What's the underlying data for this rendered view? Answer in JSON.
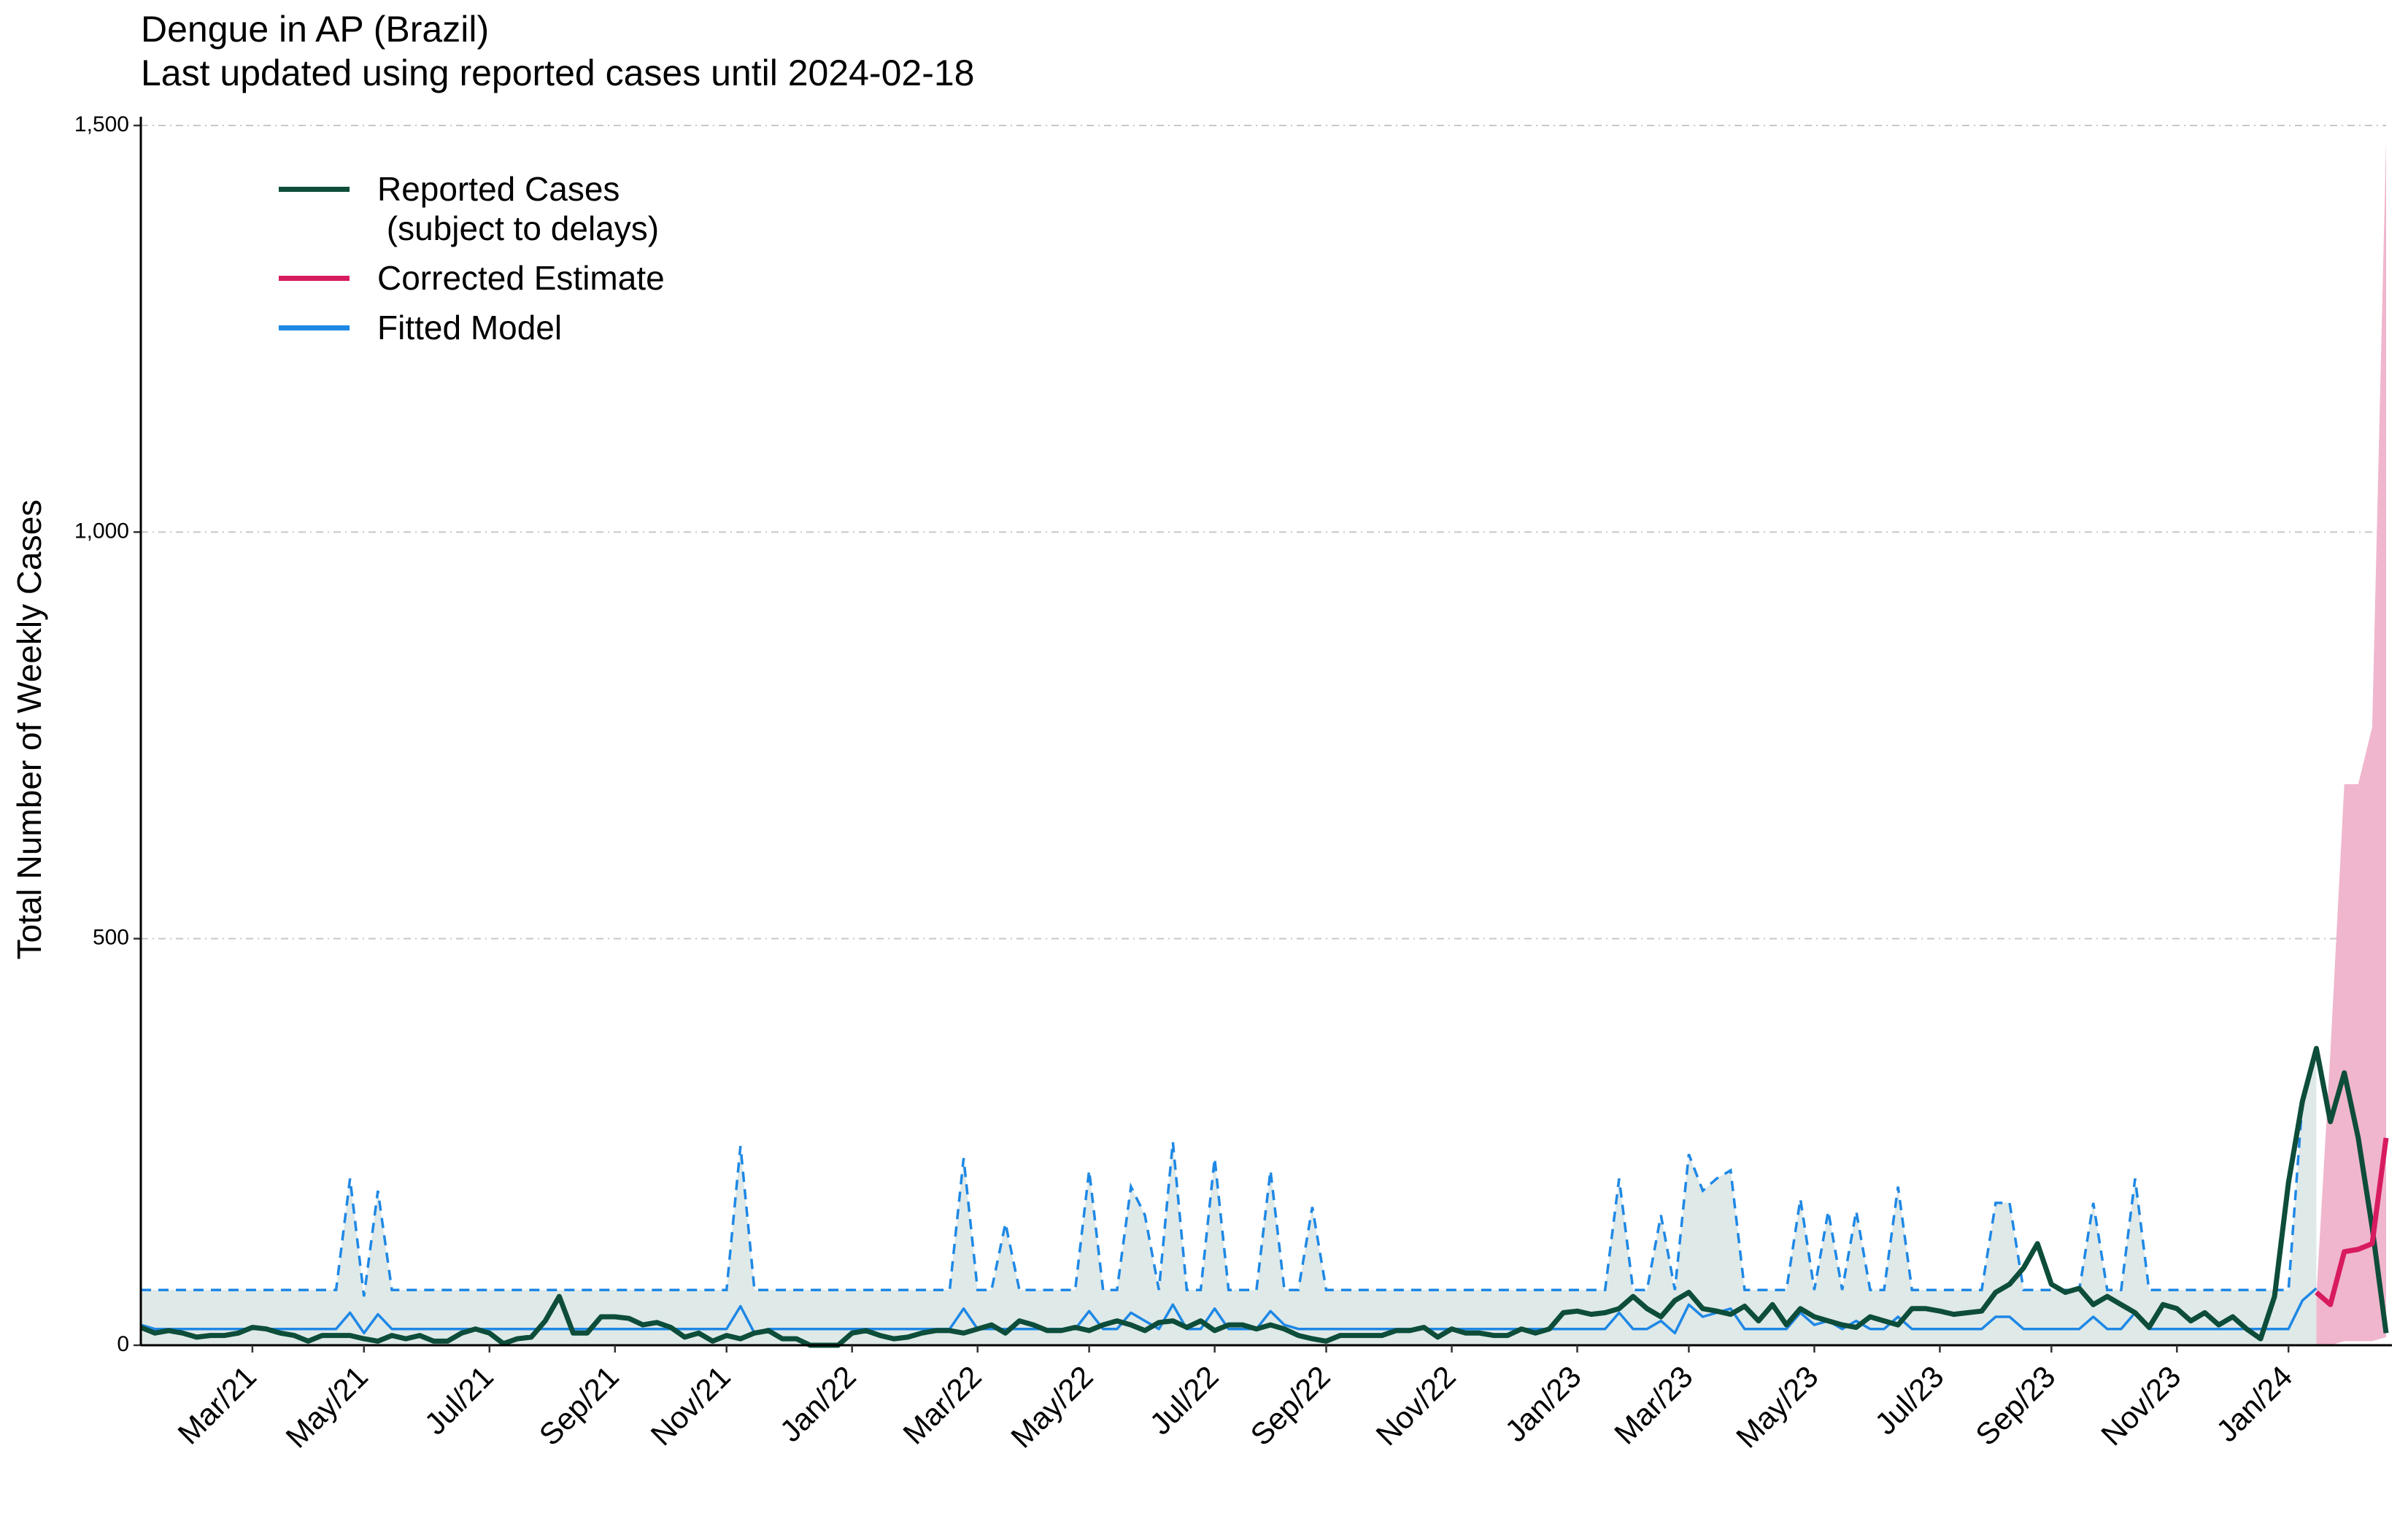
{
  "chart_data": {
    "type": "line",
    "title": "Dengue in AP (Brazil)",
    "subtitle": "Last updated using reported cases until 2024-02-18",
    "y_label": "Total Number of Weekly Cases",
    "ylim": [
      0,
      1500
    ],
    "yticks": [
      0,
      500,
      {
        "value": 1000,
        "label": "1,000"
      },
      {
        "value": 1500,
        "label": "1,500"
      }
    ],
    "grid": true,
    "legend": "top-left",
    "categories": [
      null,
      null,
      null,
      null,
      null,
      null,
      null,
      null,
      "Mar/21",
      null,
      null,
      null,
      null,
      null,
      null,
      null,
      "May/21",
      null,
      null,
      null,
      null,
      null,
      null,
      null,
      null,
      "Jul/21",
      null,
      null,
      null,
      null,
      null,
      null,
      null,
      null,
      "Sep/21",
      null,
      null,
      null,
      null,
      null,
      null,
      null,
      "Nov/21",
      null,
      null,
      null,
      null,
      null,
      null,
      null,
      null,
      "Jan/22",
      null,
      null,
      null,
      null,
      null,
      null,
      null,
      null,
      "Mar/22",
      null,
      null,
      null,
      null,
      null,
      null,
      null,
      "May/22",
      null,
      null,
      null,
      null,
      null,
      null,
      null,
      null,
      "Jul/22",
      null,
      null,
      null,
      null,
      null,
      null,
      null,
      "Sep/22",
      null,
      null,
      null,
      null,
      null,
      null,
      null,
      null,
      "Nov/22",
      null,
      null,
      null,
      null,
      null,
      null,
      null,
      null,
      "Jan/23",
      null,
      null,
      null,
      null,
      null,
      null,
      null,
      "Mar/23",
      null,
      null,
      null,
      null,
      null,
      null,
      null,
      null,
      "May/23",
      null,
      null,
      null,
      null,
      null,
      null,
      null,
      null,
      "Jul/23",
      null,
      null,
      null,
      null,
      null,
      null,
      null,
      "Sep/23",
      null,
      null,
      null,
      null,
      null,
      null,
      null,
      null,
      "Nov/23",
      null,
      null,
      null,
      null,
      null,
      null,
      null,
      "Jan/24",
      null,
      null,
      null,
      null,
      null,
      null,
      null
    ],
    "series": [
      {
        "name": "Reported Cases\n (subject to delays)",
        "color": "#0d4d3a",
        "values": [
          22,
          15,
          18,
          15,
          10,
          12,
          12,
          15,
          22,
          20,
          15,
          12,
          5,
          12,
          12,
          12,
          8,
          5,
          12,
          8,
          12,
          5,
          5,
          15,
          20,
          15,
          2,
          8,
          10,
          30,
          60,
          15,
          15,
          35,
          35,
          33,
          25,
          28,
          22,
          10,
          15,
          5,
          12,
          8,
          15,
          18,
          8,
          8,
          0,
          0,
          0,
          15,
          18,
          12,
          8,
          10,
          15,
          18,
          18,
          15,
          20,
          25,
          15,
          30,
          25,
          18,
          18,
          22,
          18,
          25,
          30,
          25,
          18,
          28,
          30,
          22,
          30,
          18,
          25,
          25,
          20,
          25,
          20,
          12,
          8,
          5,
          12,
          12,
          12,
          12,
          18,
          18,
          22,
          10,
          20,
          15,
          15,
          12,
          12,
          20,
          15,
          20,
          40,
          42,
          38,
          40,
          45,
          60,
          45,
          35,
          55,
          65,
          45,
          42,
          38,
          48,
          30,
          50,
          25,
          45,
          35,
          30,
          25,
          22,
          35,
          30,
          25,
          45,
          45,
          42,
          38,
          40,
          42,
          65,
          75,
          95,
          125,
          75,
          65,
          70,
          50,
          60,
          50,
          40,
          22,
          50,
          45,
          30,
          40,
          25,
          35,
          20,
          8,
          60,
          200,
          300,
          365,
          275,
          335,
          255,
          145,
          15
        ]
      },
      {
        "name": "Corrected Estimate",
        "color": "#d81b60",
        "band_color": "#f0b6cd",
        "values": [
          null,
          null,
          null,
          null,
          null,
          null,
          null,
          null,
          null,
          null,
          null,
          null,
          null,
          null,
          null,
          null,
          null,
          null,
          null,
          null,
          null,
          null,
          null,
          null,
          null,
          null,
          null,
          null,
          null,
          null,
          null,
          null,
          null,
          null,
          null,
          null,
          null,
          null,
          null,
          null,
          null,
          null,
          null,
          null,
          null,
          null,
          null,
          null,
          null,
          null,
          null,
          null,
          null,
          null,
          null,
          null,
          null,
          null,
          null,
          null,
          null,
          null,
          null,
          null,
          null,
          null,
          null,
          null,
          null,
          null,
          null,
          null,
          null,
          null,
          null,
          null,
          null,
          null,
          null,
          null,
          null,
          null,
          null,
          null,
          null,
          null,
          null,
          null,
          null,
          null,
          null,
          null,
          null,
          null,
          null,
          null,
          null,
          null,
          null,
          null,
          null,
          null,
          null,
          null,
          null,
          null,
          null,
          null,
          null,
          null,
          null,
          null,
          null,
          null,
          null,
          null,
          null,
          null,
          null,
          null,
          null,
          null,
          null,
          null,
          null,
          null,
          null,
          null,
          null,
          null,
          null,
          null,
          null,
          null,
          null,
          null,
          null,
          null,
          null,
          null,
          null,
          null,
          null,
          null,
          null,
          null,
          null,
          null,
          null,
          null,
          null,
          null,
          null,
          null,
          null,
          null,
          65,
          50,
          115,
          118,
          125,
          255
        ],
        "upper": [
          null,
          null,
          null,
          null,
          null,
          null,
          null,
          null,
          null,
          null,
          null,
          null,
          null,
          null,
          null,
          null,
          null,
          null,
          null,
          null,
          null,
          null,
          null,
          null,
          null,
          null,
          null,
          null,
          null,
          null,
          null,
          null,
          null,
          null,
          null,
          null,
          null,
          null,
          null,
          null,
          null,
          null,
          null,
          null,
          null,
          null,
          null,
          null,
          null,
          null,
          null,
          null,
          null,
          null,
          null,
          null,
          null,
          null,
          null,
          null,
          null,
          null,
          null,
          null,
          null,
          null,
          null,
          null,
          null,
          null,
          null,
          null,
          null,
          null,
          null,
          null,
          null,
          null,
          null,
          null,
          null,
          null,
          null,
          null,
          null,
          null,
          null,
          null,
          null,
          null,
          null,
          null,
          null,
          null,
          null,
          null,
          null,
          null,
          null,
          null,
          null,
          null,
          null,
          null,
          null,
          null,
          null,
          null,
          null,
          null,
          null,
          null,
          null,
          null,
          null,
          null,
          null,
          null,
          null,
          null,
          null,
          null,
          null,
          null,
          null,
          null,
          null,
          null,
          null,
          null,
          null,
          null,
          null,
          null,
          null,
          null,
          null,
          null,
          null,
          null,
          null,
          null,
          null,
          null,
          null,
          null,
          null,
          null,
          null,
          null,
          null,
          null,
          null,
          null,
          null,
          null,
          60,
          360,
          690,
          690,
          760,
          1480
        ],
        "lower": [
          null,
          null,
          null,
          null,
          null,
          null,
          null,
          null,
          null,
          null,
          null,
          null,
          null,
          null,
          null,
          null,
          null,
          null,
          null,
          null,
          null,
          null,
          null,
          null,
          null,
          null,
          null,
          null,
          null,
          null,
          null,
          null,
          null,
          null,
          null,
          null,
          null,
          null,
          null,
          null,
          null,
          null,
          null,
          null,
          null,
          null,
          null,
          null,
          null,
          null,
          null,
          null,
          null,
          null,
          null,
          null,
          null,
          null,
          null,
          null,
          null,
          null,
          null,
          null,
          null,
          null,
          null,
          null,
          null,
          null,
          null,
          null,
          null,
          null,
          null,
          null,
          null,
          null,
          null,
          null,
          null,
          null,
          null,
          null,
          null,
          null,
          null,
          null,
          null,
          null,
          null,
          null,
          null,
          null,
          null,
          null,
          null,
          null,
          null,
          null,
          null,
          null,
          null,
          null,
          null,
          null,
          null,
          null,
          null,
          null,
          null,
          null,
          null,
          null,
          null,
          null,
          null,
          null,
          null,
          null,
          null,
          null,
          null,
          null,
          null,
          null,
          null,
          null,
          null,
          null,
          null,
          null,
          null,
          null,
          null,
          null,
          null,
          null,
          null,
          null,
          null,
          null,
          null,
          null,
          null,
          null,
          null,
          null,
          null,
          null,
          null,
          null,
          null,
          null,
          null,
          null,
          0,
          0,
          5,
          5,
          5,
          10
        ]
      },
      {
        "name": "Fitted Model",
        "color": "#1e88e5",
        "band_color": "#dfe9e8",
        "values": [
          25,
          20,
          20,
          20,
          20,
          20,
          20,
          20,
          20,
          20,
          20,
          20,
          20,
          20,
          20,
          40,
          15,
          38,
          20,
          20,
          20,
          20,
          20,
          20,
          20,
          20,
          20,
          20,
          20,
          20,
          20,
          20,
          20,
          20,
          20,
          20,
          20,
          20,
          20,
          20,
          20,
          20,
          20,
          48,
          15,
          20,
          20,
          20,
          20,
          20,
          20,
          20,
          20,
          20,
          20,
          20,
          20,
          20,
          20,
          45,
          20,
          20,
          20,
          20,
          20,
          20,
          20,
          20,
          42,
          20,
          20,
          40,
          30,
          20,
          50,
          20,
          20,
          45,
          20,
          20,
          20,
          42,
          25,
          20,
          20,
          20,
          20,
          20,
          20,
          20,
          20,
          20,
          20,
          20,
          20,
          20,
          20,
          20,
          20,
          20,
          20,
          20,
          20,
          20,
          20,
          20,
          40,
          20,
          20,
          30,
          15,
          50,
          35,
          40,
          45,
          20,
          20,
          20,
          20,
          40,
          25,
          30,
          20,
          30,
          20,
          20,
          35,
          20,
          20,
          20,
          20,
          20,
          20,
          35,
          35,
          20,
          20,
          20,
          20,
          20,
          35,
          20,
          20,
          40,
          20,
          20,
          20,
          20,
          20,
          20,
          20,
          20,
          20,
          20,
          20,
          55,
          70,
          null,
          null,
          null,
          null,
          null
        ],
        "upper": [
          68,
          68,
          68,
          68,
          68,
          68,
          68,
          68,
          68,
          68,
          68,
          68,
          68,
          68,
          68,
          205,
          60,
          190,
          68,
          68,
          68,
          68,
          68,
          68,
          68,
          68,
          68,
          68,
          68,
          68,
          68,
          68,
          68,
          68,
          68,
          68,
          68,
          68,
          68,
          68,
          68,
          68,
          68,
          245,
          68,
          68,
          68,
          68,
          68,
          68,
          68,
          68,
          68,
          68,
          68,
          68,
          68,
          68,
          68,
          230,
          68,
          68,
          150,
          68,
          68,
          68,
          68,
          68,
          215,
          68,
          68,
          195,
          160,
          68,
          250,
          68,
          68,
          230,
          68,
          68,
          68,
          215,
          68,
          68,
          170,
          68,
          68,
          68,
          68,
          68,
          68,
          68,
          68,
          68,
          68,
          68,
          68,
          68,
          68,
          68,
          68,
          68,
          68,
          68,
          68,
          68,
          205,
          68,
          68,
          160,
          68,
          235,
          190,
          205,
          215,
          68,
          68,
          68,
          68,
          180,
          68,
          165,
          68,
          165,
          68,
          68,
          195,
          68,
          68,
          68,
          68,
          68,
          68,
          175,
          175,
          68,
          68,
          68,
          68,
          68,
          175,
          68,
          68,
          205,
          68,
          68,
          68,
          68,
          68,
          68,
          68,
          68,
          68,
          68,
          68,
          300,
          365,
          null,
          null,
          null,
          null,
          null
        ]
      }
    ]
  }
}
